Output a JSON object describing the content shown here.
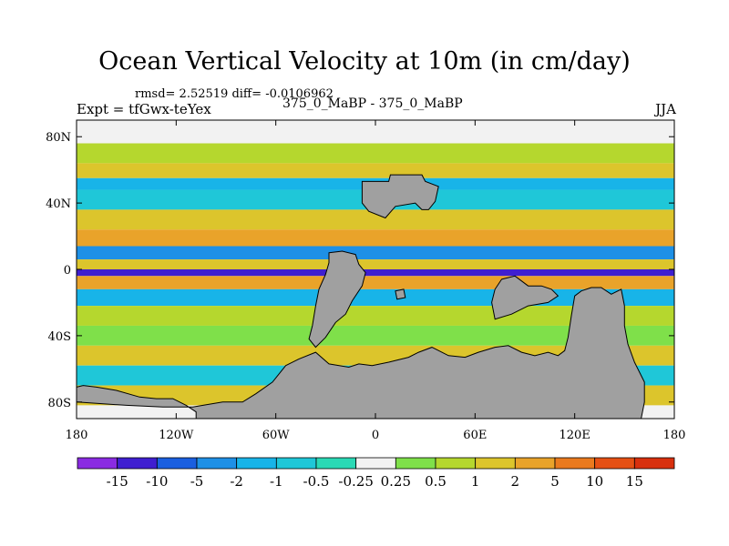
{
  "chart_data": {
    "type": "heatmap",
    "title": "Ocean Vertical Velocity at 10m (in cm/day)",
    "stats_label": "rmsd= 2.52519  diff= -0.0106962",
    "left_label": "Expt = tfGwx-teYex",
    "center_label": "375_0_MaBP - 375_0_MaBP",
    "right_label": "JJA",
    "xlim": [
      -180,
      180
    ],
    "ylim": [
      -90,
      90
    ],
    "x_ticks": [
      {
        "value": -180,
        "label": "180"
      },
      {
        "value": -120,
        "label": "120W"
      },
      {
        "value": -60,
        "label": "60W"
      },
      {
        "value": 0,
        "label": "0"
      },
      {
        "value": 60,
        "label": "60E"
      },
      {
        "value": 120,
        "label": "120E"
      },
      {
        "value": 180,
        "label": "180"
      }
    ],
    "y_ticks": [
      {
        "value": 80,
        "label": "80N"
      },
      {
        "value": 40,
        "label": "40N"
      },
      {
        "value": 0,
        "label": "0"
      },
      {
        "value": -40,
        "label": "40S"
      },
      {
        "value": -80,
        "label": "80S"
      }
    ],
    "colorbar": {
      "levels": [
        "-15",
        "-10",
        "-5",
        "-2",
        "-1",
        "-0.5",
        "-0.25",
        "0.25",
        "0.5",
        "1",
        "2",
        "5",
        "10",
        "15"
      ],
      "colors": [
        "#8a2be2",
        "#3f1fd0",
        "#1a5fe0",
        "#1e90e6",
        "#18b4e8",
        "#1fc7d8",
        "#2ad9b5",
        "#f2f2f2",
        "#7fe04a",
        "#b5d72e",
        "#dcc52c",
        "#e9a32a",
        "#ea7a1e",
        "#e55014",
        "#d8300e"
      ]
    },
    "zonal_bands": [
      {
        "lat_min": 76,
        "lat_max": 90,
        "color_index": 7
      },
      {
        "lat_min": 64,
        "lat_max": 76,
        "color_index": 9
      },
      {
        "lat_min": 55,
        "lat_max": 64,
        "color_index": 10
      },
      {
        "lat_min": 48,
        "lat_max": 55,
        "color_index": 4
      },
      {
        "lat_min": 36,
        "lat_max": 48,
        "color_index": 5
      },
      {
        "lat_min": 24,
        "lat_max": 36,
        "color_index": 10
      },
      {
        "lat_min": 14,
        "lat_max": 24,
        "color_index": 11
      },
      {
        "lat_min": 6,
        "lat_max": 14,
        "color_index": 3
      },
      {
        "lat_min": 0,
        "lat_max": 6,
        "color_index": 10
      },
      {
        "lat_min": -4,
        "lat_max": 0,
        "color_index": 1
      },
      {
        "lat_min": -12,
        "lat_max": -4,
        "color_index": 11
      },
      {
        "lat_min": -22,
        "lat_max": -12,
        "color_index": 4
      },
      {
        "lat_min": -34,
        "lat_max": -22,
        "color_index": 9
      },
      {
        "lat_min": -46,
        "lat_max": -34,
        "color_index": 8
      },
      {
        "lat_min": -58,
        "lat_max": -46,
        "color_index": 10
      },
      {
        "lat_min": -70,
        "lat_max": -58,
        "color_index": 5
      },
      {
        "lat_min": -82,
        "lat_max": -70,
        "color_index": 10
      },
      {
        "lat_min": -90,
        "lat_max": -82,
        "color_index": 7
      }
    ],
    "land_color": "#a0a0a0",
    "land_regions": [
      {
        "name": "north-landmass",
        "coords": [
          [
            -8,
            53
          ],
          [
            8,
            53
          ],
          [
            9,
            57
          ],
          [
            28,
            57
          ],
          [
            30,
            53
          ],
          [
            38,
            50
          ],
          [
            36,
            41
          ],
          [
            32,
            36
          ],
          [
            28,
            36
          ],
          [
            24,
            40
          ],
          [
            12,
            38
          ],
          [
            6,
            31
          ],
          [
            -4,
            35
          ],
          [
            -8,
            40
          ]
        ]
      },
      {
        "name": "west-continent",
        "coords": [
          [
            -28,
            10
          ],
          [
            -20,
            11
          ],
          [
            -12,
            9
          ],
          [
            -10,
            3
          ],
          [
            -6,
            -2
          ],
          [
            -8,
            -10
          ],
          [
            -14,
            -19
          ],
          [
            -18,
            -27
          ],
          [
            -24,
            -32
          ],
          [
            -30,
            -41
          ],
          [
            -36,
            -47
          ],
          [
            -40,
            -42
          ],
          [
            -38,
            -34
          ],
          [
            -36,
            -22
          ],
          [
            -34,
            -12
          ],
          [
            -30,
            -3
          ],
          [
            -28,
            4
          ]
        ]
      },
      {
        "name": "southern-continent",
        "coords": [
          [
            -54,
            -58
          ],
          [
            -46,
            -54
          ],
          [
            -36,
            -50
          ],
          [
            -28,
            -57
          ],
          [
            -16,
            -59
          ],
          [
            -10,
            -57
          ],
          [
            -2,
            -58
          ],
          [
            8,
            -56
          ],
          [
            20,
            -53
          ],
          [
            26,
            -50
          ],
          [
            34,
            -47
          ],
          [
            44,
            -52
          ],
          [
            54,
            -53
          ],
          [
            62,
            -50
          ],
          [
            72,
            -47
          ],
          [
            80,
            -46
          ],
          [
            88,
            -50
          ],
          [
            96,
            -52
          ],
          [
            104,
            -50
          ],
          [
            110,
            -52
          ],
          [
            114,
            -49
          ],
          [
            116,
            -41
          ],
          [
            118,
            -28
          ],
          [
            120,
            -16
          ],
          [
            124,
            -13
          ],
          [
            130,
            -11
          ],
          [
            136,
            -11
          ],
          [
            142,
            -15
          ],
          [
            148,
            -12
          ],
          [
            150,
            -22
          ],
          [
            150,
            -34
          ],
          [
            152,
            -45
          ],
          [
            156,
            -56
          ],
          [
            162,
            -68
          ],
          [
            162,
            -80
          ],
          [
            160,
            -90
          ],
          [
            -108,
            -90
          ],
          [
            -108,
            -86
          ],
          [
            -114,
            -82
          ],
          [
            -122,
            -78
          ],
          [
            -132,
            -78
          ],
          [
            -142,
            -77
          ],
          [
            -156,
            -73
          ],
          [
            -168,
            -71
          ],
          [
            -176,
            -70
          ],
          [
            -180,
            -71
          ],
          [
            -180,
            -80
          ],
          [
            -150,
            -82
          ],
          [
            -128,
            -83
          ],
          [
            -110,
            -83
          ],
          [
            -92,
            -80
          ],
          [
            -80,
            -80
          ],
          [
            -72,
            -75
          ],
          [
            -62,
            -68
          ]
        ]
      },
      {
        "name": "mid-landmass",
        "coords": [
          [
            76,
            -6
          ],
          [
            84,
            -4
          ],
          [
            92,
            -10
          ],
          [
            100,
            -10
          ],
          [
            106,
            -12
          ],
          [
            110,
            -16
          ],
          [
            104,
            -20
          ],
          [
            92,
            -22
          ],
          [
            82,
            -27
          ],
          [
            72,
            -30
          ],
          [
            70,
            -20
          ],
          [
            72,
            -12
          ]
        ]
      },
      {
        "name": "small-island",
        "coords": [
          [
            12,
            -13
          ],
          [
            17,
            -12
          ],
          [
            18,
            -17
          ],
          [
            13,
            -18
          ]
        ]
      }
    ]
  }
}
